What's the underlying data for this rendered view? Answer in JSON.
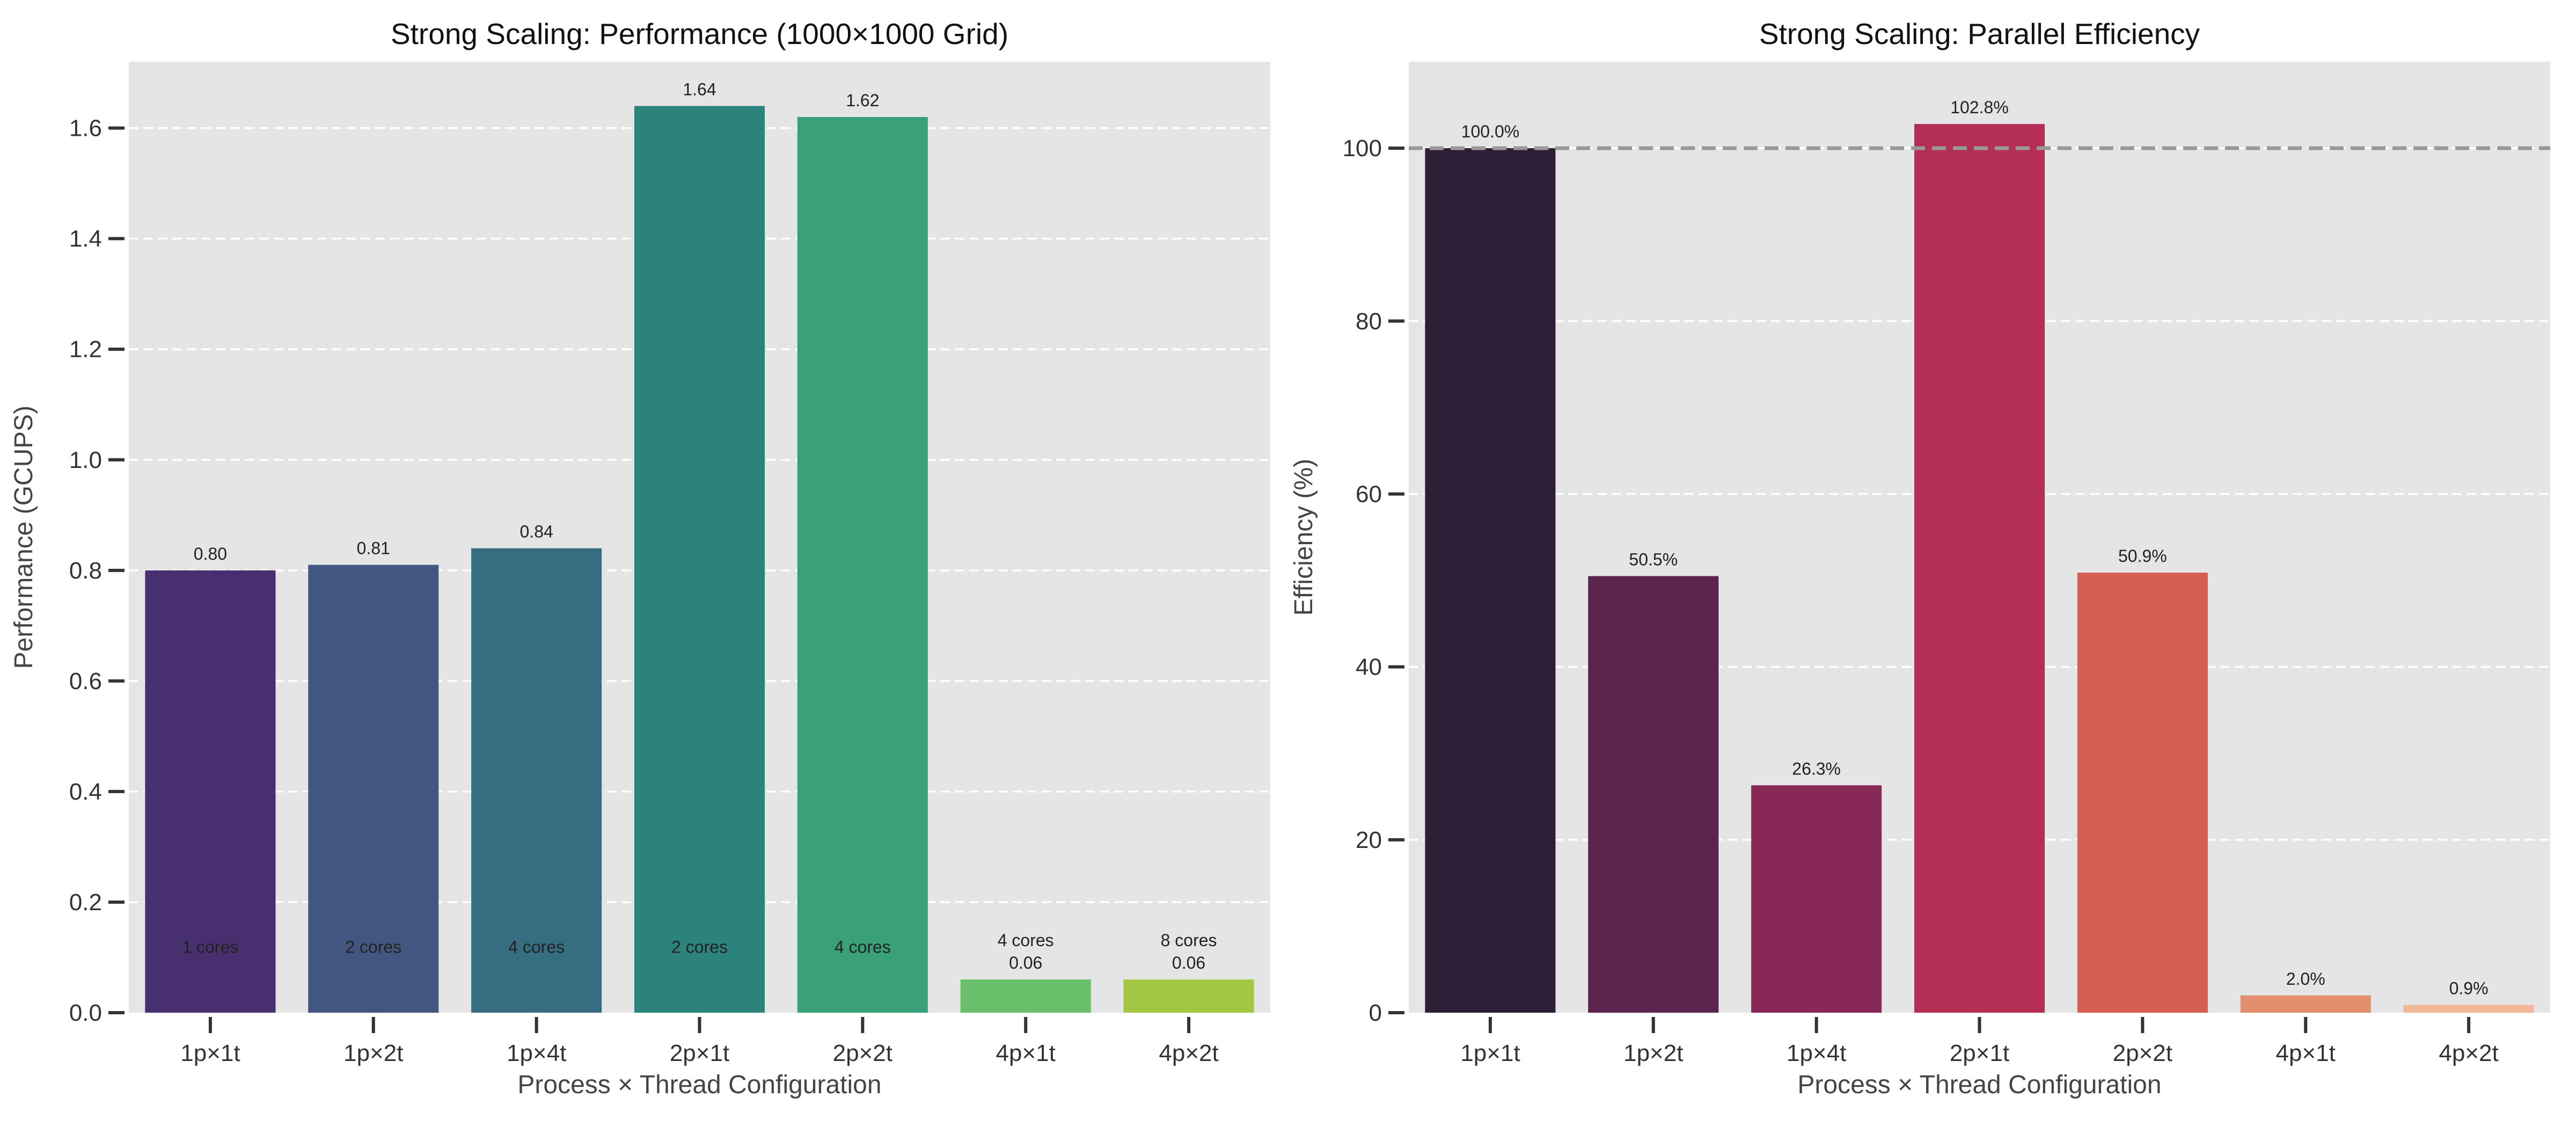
{
  "chart_data": [
    {
      "type": "bar",
      "title": "Strong Scaling: Performance (1000×1000 Grid)",
      "xlabel": "Process × Thread Configuration",
      "ylabel": "Performance (GCUPS)",
      "categories": [
        "1p×1t",
        "1p×2t",
        "1p×4t",
        "2p×1t",
        "2p×2t",
        "4p×1t",
        "4p×2t"
      ],
      "values": [
        0.8,
        0.81,
        0.84,
        1.64,
        1.62,
        0.06,
        0.06
      ],
      "value_labels": [
        "0.80",
        "0.81",
        "0.84",
        "1.64",
        "1.62",
        "0.06",
        "0.06"
      ],
      "core_labels": [
        "1 cores",
        "2 cores",
        "4 cores",
        "2 cores",
        "4 cores",
        "4 cores",
        "8 cores"
      ],
      "colors": [
        "#482f6f",
        "#42567f",
        "#366d80",
        "#2b837c",
        "#3aa07a",
        "#69bf6a",
        "#a3c643"
      ],
      "ylim": [
        0,
        1.72
      ],
      "yticks": [
        0.0,
        0.2,
        0.4,
        0.6,
        0.8,
        1.0,
        1.2,
        1.4,
        1.6
      ],
      "ytick_labels": [
        "0.0",
        "0.2",
        "0.4",
        "0.6",
        "0.8",
        "1.0",
        "1.2",
        "1.4",
        "1.6"
      ],
      "grid": "y dashed",
      "background": "#e5e5e5"
    },
    {
      "type": "bar",
      "title": "Strong Scaling: Parallel Efficiency",
      "xlabel": "Process × Thread Configuration",
      "ylabel": "Efficiency (%)",
      "categories": [
        "1p×1t",
        "1p×2t",
        "1p×4t",
        "2p×1t",
        "2p×2t",
        "4p×1t",
        "4p×2t"
      ],
      "values": [
        100.0,
        50.5,
        26.3,
        102.8,
        50.9,
        2.0,
        0.9
      ],
      "value_labels": [
        "100.0%",
        "50.5%",
        "26.3%",
        "102.8%",
        "50.9%",
        "2.0%",
        "0.9%"
      ],
      "colors": [
        "#2e1d36",
        "#5b244d",
        "#872856",
        "#b52e55",
        "#d75e52",
        "#e38f6d",
        "#f0b898"
      ],
      "ylim": [
        0,
        110
      ],
      "yticks": [
        0,
        20,
        40,
        60,
        80,
        100
      ],
      "ytick_labels": [
        "0",
        "20",
        "40",
        "60",
        "80",
        "100"
      ],
      "reference_line": 100,
      "grid": "y dashed",
      "background": "#e5e5e5"
    }
  ]
}
